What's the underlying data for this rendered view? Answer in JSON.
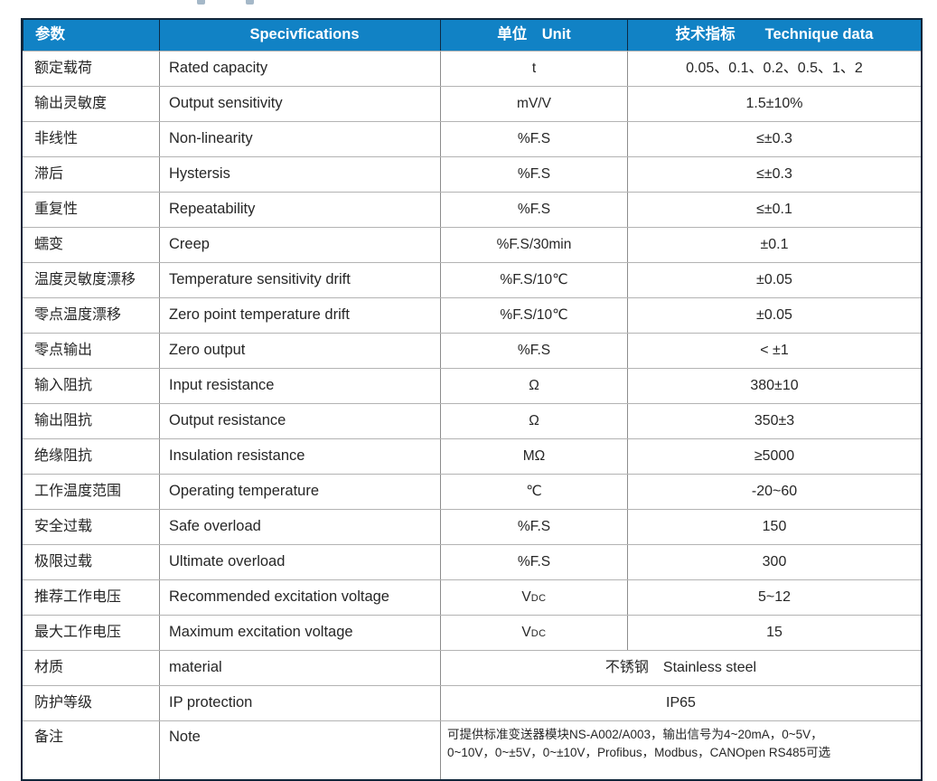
{
  "colors": {
    "header_bg": "#1182c5",
    "header_text": "#ffffff",
    "outer_border": "#10263a",
    "grid_horizontal": "#b3b3b3",
    "grid_vertical": "#8c8c8c",
    "body_text": "#262626"
  },
  "table": {
    "headers": [
      "参数",
      "Specivfications",
      "单位　Unit",
      "技术指标　　Technique data"
    ],
    "rows": [
      {
        "zh": "额定载荷",
        "en": "Rated capacity",
        "unit": "t",
        "value": "0.05、0.1、0.2、0.5、1、2"
      },
      {
        "zh": "输出灵敏度",
        "en": "Output sensitivity",
        "unit": "mV/V",
        "value": "1.5±10%"
      },
      {
        "zh": "非线性",
        "en": "Non-linearity",
        "unit": "%F.S",
        "value": "≤±0.3"
      },
      {
        "zh": "滞后",
        "en": "Hystersis",
        "unit": "%F.S",
        "value": "≤±0.3"
      },
      {
        "zh": "重复性",
        "en": "Repeatability",
        "unit": "%F.S",
        "value": "≤±0.1"
      },
      {
        "zh": "蠕变",
        "en": "Creep",
        "unit": "%F.S/30min",
        "value": "±0.1"
      },
      {
        "zh": "温度灵敏度漂移",
        "en": "Temperature sensitivity drift",
        "unit": "%F.S/10℃",
        "value": "±0.05"
      },
      {
        "zh": "零点温度漂移",
        "en": "Zero point temperature drift",
        "unit": "%F.S/10℃",
        "value": "±0.05"
      },
      {
        "zh": "零点输出",
        "en": "Zero output",
        "unit": "%F.S",
        "value": "< ±1"
      },
      {
        "zh": "输入阻抗",
        "en": "Input resistance",
        "unit": "Ω",
        "value": "380±10"
      },
      {
        "zh": "输出阻抗",
        "en": "Output resistance",
        "unit": "Ω",
        "value": "350±3"
      },
      {
        "zh": "绝缘阻抗",
        "en": "Insulation resistance",
        "unit": "MΩ",
        "value": "≥5000"
      },
      {
        "zh": "工作温度范围",
        "en": "Operating temperature",
        "unit": "℃",
        "value": "-20~60"
      },
      {
        "zh": "安全过载",
        "en": "Safe overload",
        "unit": "%F.S",
        "value": "150"
      },
      {
        "zh": "极限过载",
        "en": "Ultimate overload",
        "unit": "%F.S",
        "value": "300"
      },
      {
        "zh": "推荐工作电压",
        "en": "Recommended excitation voltage",
        "unit": "VDC",
        "value": "5~12"
      },
      {
        "zh": "最大工作电压",
        "en": "Maximum excitation voltage",
        "unit": "VDC",
        "value": "15"
      },
      {
        "zh": "材质",
        "en": "material",
        "merged": true,
        "value": "不锈钢　Stainless steel"
      },
      {
        "zh": "防护等级",
        "en": "IP protection",
        "merged": true,
        "value": "IP65"
      },
      {
        "zh": "备注",
        "en": "Note",
        "merged": true,
        "note_lines": [
          "可提供标准变送器模块NS-A002/A003，输出信号为4~20mA，0~5V，",
          "0~10V，0~±5V，0~±10V，Profibus，Modbus，CANOpen RS485可选"
        ]
      }
    ]
  }
}
